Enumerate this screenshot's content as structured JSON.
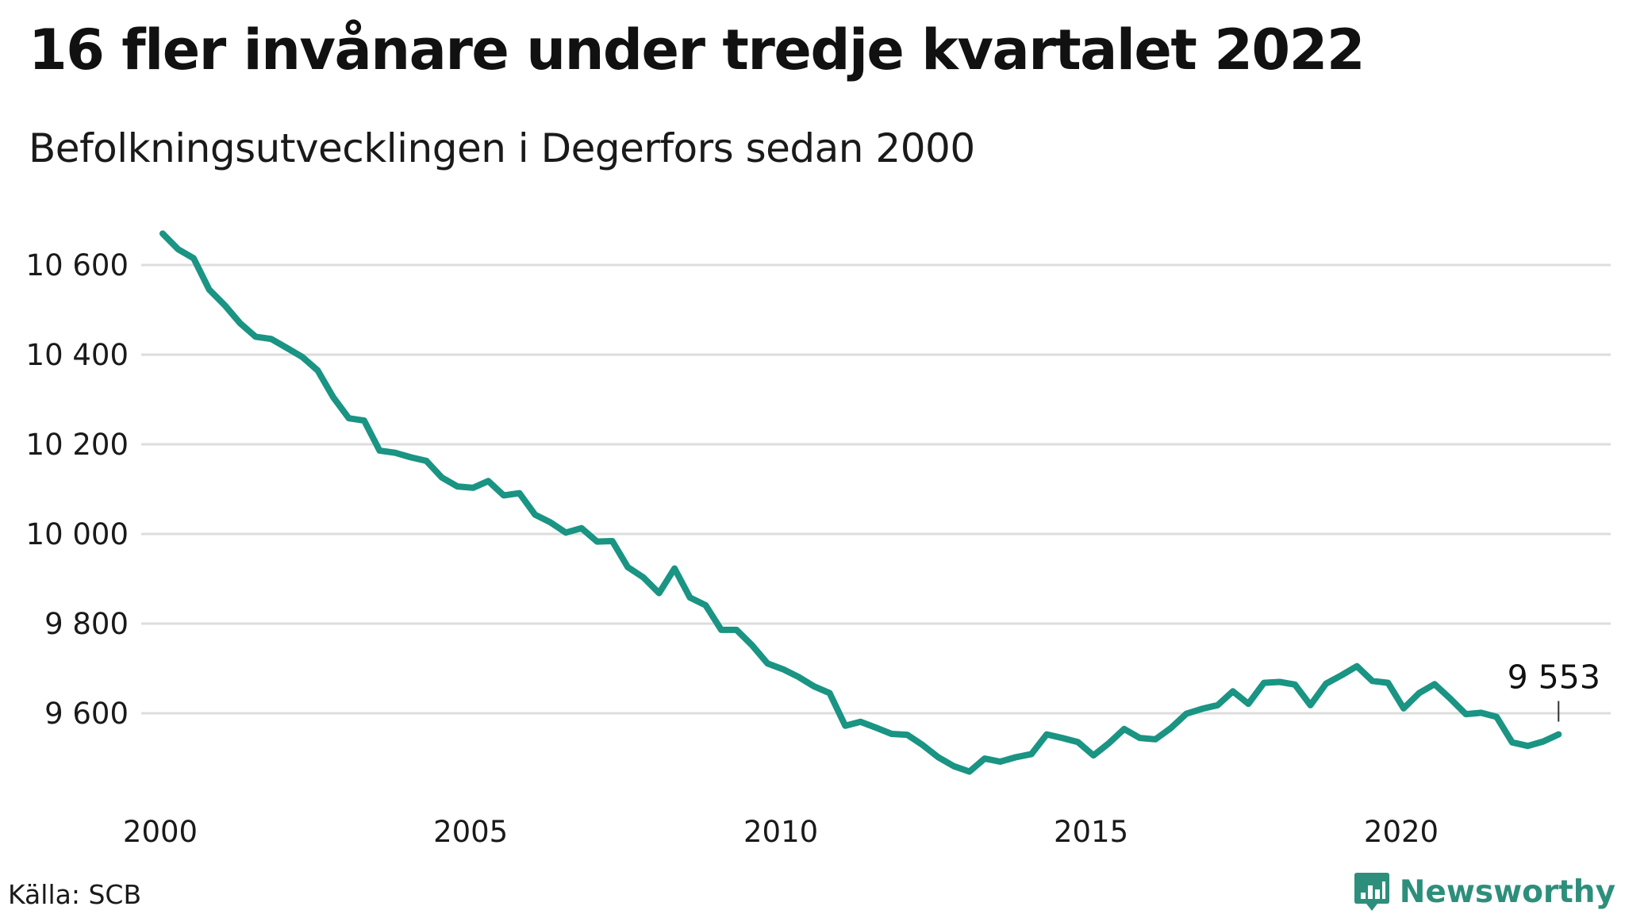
{
  "header": {
    "title": "16 fler invånare under tredje kvartalet 2022",
    "subtitle": "Befolkningsutvecklingen i Degerfors sedan 2000"
  },
  "footer": {
    "source": "Källa: SCB",
    "brand": "Newsworthy",
    "brand_icon": "bar-chart-badge-icon"
  },
  "colors": {
    "line": "#1a9483",
    "grid": "#dddddd",
    "brand": "#2d8f7b"
  },
  "chart_data": {
    "type": "line",
    "title": "16 fler invånare under tredje kvartalet 2022",
    "subtitle": "Befolkningsutvecklingen i Degerfors sedan 2000",
    "xlabel": "",
    "ylabel": "",
    "grid": true,
    "xlim": [
      "2000-01-01",
      "2022-12-31"
    ],
    "ylim": [
      9450,
      10700
    ],
    "y_ticks": [
      9600,
      9800,
      10000,
      10200,
      10400,
      10600
    ],
    "y_tick_labels": [
      "9 600",
      "9 800",
      "10 000",
      "10 200",
      "10 400",
      "10 600"
    ],
    "x_ticks": [
      "2000",
      "2005",
      "2010",
      "2015",
      "2020"
    ],
    "end_label": "9 553",
    "series": [
      {
        "x": [
          "2000-Q1",
          "2000-Q2",
          "2000-Q3",
          "2000-Q4",
          "2001-Q1",
          "2001-Q2",
          "2001-Q3",
          "2001-Q4",
          "2002-Q1",
          "2002-Q2",
          "2002-Q3",
          "2002-Q4",
          "2003-Q1",
          "2003-Q2",
          "2003-Q3",
          "2003-Q4",
          "2004-Q1",
          "2004-Q2",
          "2004-Q3",
          "2004-Q4",
          "2005-Q1",
          "2005-Q2",
          "2005-Q3",
          "2005-Q4",
          "2006-Q1",
          "2006-Q2",
          "2006-Q3",
          "2006-Q4",
          "2007-Q1",
          "2007-Q2",
          "2007-Q3",
          "2007-Q4",
          "2008-Q1",
          "2008-Q2",
          "2008-Q3",
          "2008-Q4",
          "2009-Q1",
          "2009-Q2",
          "2009-Q3",
          "2009-Q4",
          "2010-Q1",
          "2010-Q2",
          "2010-Q3",
          "2010-Q4",
          "2011-Q1",
          "2011-Q2",
          "2011-Q3",
          "2011-Q4",
          "2012-Q1",
          "2012-Q2",
          "2012-Q3",
          "2012-Q4",
          "2013-Q1",
          "2013-Q2",
          "2013-Q3",
          "2013-Q4",
          "2014-Q1",
          "2014-Q2",
          "2014-Q3",
          "2014-Q4",
          "2015-Q1",
          "2015-Q2",
          "2015-Q3",
          "2015-Q4",
          "2016-Q1",
          "2016-Q2",
          "2016-Q3",
          "2016-Q4",
          "2017-Q1",
          "2017-Q2",
          "2017-Q3",
          "2017-Q4",
          "2018-Q1",
          "2018-Q2",
          "2018-Q3",
          "2018-Q4",
          "2019-Q1",
          "2019-Q2",
          "2019-Q3",
          "2019-Q4",
          "2020-Q1",
          "2020-Q2",
          "2020-Q3",
          "2020-Q4",
          "2021-Q1",
          "2021-Q2",
          "2021-Q3",
          "2021-Q4",
          "2022-Q1",
          "2022-Q2",
          "2022-Q3"
        ],
        "values": [
          10670,
          10635,
          10615,
          10545,
          10510,
          10470,
          10440,
          10435,
          10415,
          10395,
          10365,
          10305,
          10258,
          10253,
          10186,
          10181,
          10171,
          10163,
          10126,
          10106,
          10103,
          10118,
          10086,
          10091,
          10043,
          10026,
          10003,
          10013,
          9983,
          9984,
          9926,
          9903,
          9868,
          9923,
          9858,
          9841,
          9786,
          9786,
          9752,
          9711,
          9698,
          9681,
          9660,
          9645,
          9572,
          9581,
          9568,
          9554,
          9552,
          9529,
          9502,
          9482,
          9470,
          9499,
          9492,
          9502,
          9509,
          9553,
          9545,
          9536,
          9506,
          9533,
          9565,
          9545,
          9542,
          9567,
          9599,
          9610,
          9618,
          9649,
          9621,
          9668,
          9670,
          9664,
          9618,
          9666,
          9685,
          9705,
          9672,
          9668,
          9611,
          9645,
          9665,
          9633,
          9598,
          9601,
          9592,
          9535,
          9527,
          9537,
          9553
        ]
      }
    ]
  }
}
